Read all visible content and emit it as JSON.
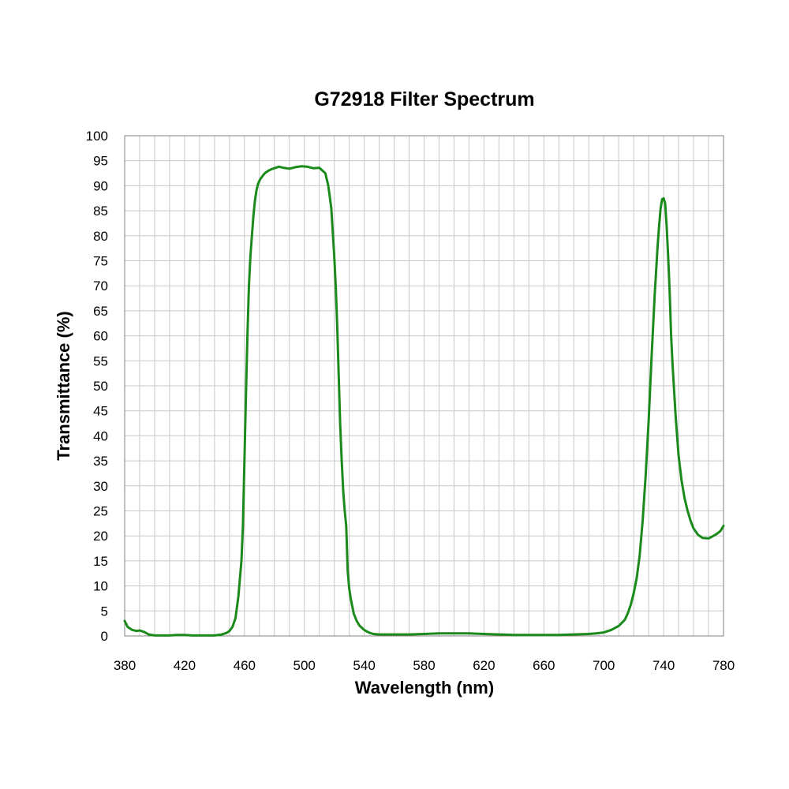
{
  "chart_data": {
    "type": "line",
    "title": "G72918 Filter Spectrum",
    "xlabel": "Wavelength (nm)",
    "ylabel": "Transmittance (%)",
    "xlim": [
      380,
      780
    ],
    "ylim": [
      0,
      100
    ],
    "x_ticks": [
      380,
      420,
      460,
      500,
      540,
      580,
      620,
      660,
      700,
      740,
      780
    ],
    "y_ticks": [
      0,
      5,
      10,
      15,
      20,
      25,
      30,
      35,
      40,
      45,
      50,
      55,
      60,
      65,
      70,
      75,
      80,
      85,
      90,
      95,
      100
    ],
    "x_minor_step": 10,
    "y_minor_step": 5,
    "grid": true,
    "legend": "none",
    "line_color": "#1a8a1a",
    "series": [
      {
        "x": [
          380,
          382,
          385,
          388,
          390,
          393,
          396,
          400,
          405,
          410,
          415,
          420,
          425,
          430,
          435,
          440,
          445,
          448,
          450,
          452,
          454,
          456,
          458,
          459,
          460,
          461,
          462,
          463,
          464,
          465,
          466,
          467,
          468,
          469,
          470,
          471,
          472,
          473,
          474,
          476,
          478,
          480,
          483,
          486,
          490,
          494,
          498,
          502,
          506,
          510,
          514,
          516,
          518,
          520,
          521,
          522,
          523,
          524,
          525,
          526,
          527,
          528,
          529,
          530,
          531,
          532,
          533,
          535,
          537,
          540,
          543,
          546,
          550,
          555,
          560,
          570,
          580,
          590,
          600,
          610,
          620,
          630,
          640,
          650,
          660,
          670,
          680,
          690,
          695,
          700,
          705,
          710,
          714,
          716,
          718,
          720,
          722,
          724,
          726,
          728,
          730,
          732,
          734,
          736,
          737,
          738,
          739,
          740,
          741,
          742,
          743,
          744,
          745,
          746,
          747,
          748,
          750,
          752,
          754,
          756,
          758,
          760,
          763,
          766,
          770,
          772,
          775,
          778,
          780
        ],
        "y": [
          3.0,
          1.8,
          1.2,
          1.0,
          1.1,
          0.8,
          0.3,
          0.1,
          0.1,
          0.1,
          0.2,
          0.2,
          0.1,
          0.1,
          0.1,
          0.1,
          0.3,
          0.6,
          1.0,
          1.8,
          3.5,
          8.0,
          15.0,
          22.0,
          35.0,
          48.0,
          60.0,
          70.0,
          76.0,
          80.0,
          84.0,
          87.0,
          89.0,
          90.3,
          91.0,
          91.5,
          91.9,
          92.3,
          92.6,
          93.0,
          93.3,
          93.5,
          93.8,
          93.6,
          93.4,
          93.7,
          93.9,
          93.8,
          93.5,
          93.6,
          92.5,
          90.0,
          85.5,
          76.0,
          70.0,
          62.0,
          52.0,
          42.0,
          35.0,
          29.0,
          25.0,
          22.0,
          13.0,
          9.5,
          7.5,
          6.0,
          4.5,
          3.0,
          2.0,
          1.2,
          0.7,
          0.4,
          0.3,
          0.3,
          0.3,
          0.3,
          0.4,
          0.5,
          0.5,
          0.5,
          0.4,
          0.3,
          0.2,
          0.2,
          0.2,
          0.2,
          0.3,
          0.4,
          0.5,
          0.7,
          1.2,
          2.0,
          3.2,
          4.5,
          6.2,
          8.5,
          11.5,
          16.0,
          23.0,
          32.0,
          43.0,
          56.0,
          68.0,
          78.0,
          82.0,
          85.5,
          87.3,
          87.5,
          86.5,
          82.0,
          76.0,
          69.0,
          60.0,
          54.0,
          49.0,
          44.0,
          36.0,
          31.0,
          27.5,
          25.0,
          23.0,
          21.5,
          20.2,
          19.6,
          19.5,
          19.8,
          20.3,
          21.0,
          22.0
        ]
      }
    ]
  }
}
